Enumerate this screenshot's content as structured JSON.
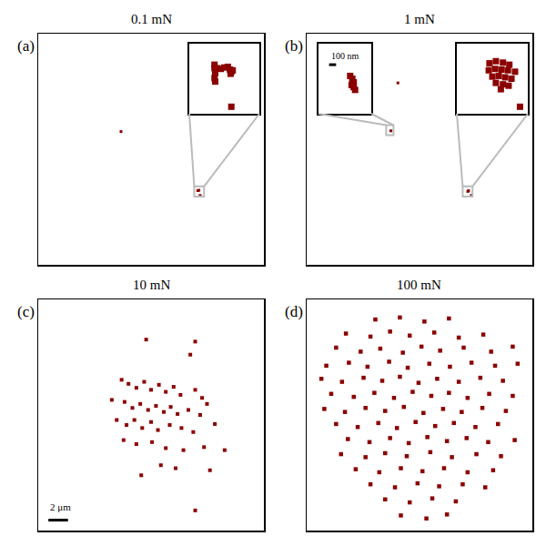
{
  "chart_data": [
    {
      "type": "scatter",
      "title": "0.1 mN",
      "panel": "(a)",
      "xlim": [
        0,
        23
      ],
      "ylim": [
        0,
        23
      ],
      "tick_labels": false,
      "color": "#8b0000",
      "points": [
        [
          16.38,
          7.42
        ],
        [
          16.26,
          7.38
        ],
        [
          16.5,
          6.9
        ],
        [
          8.44,
          13.26
        ]
      ],
      "insets": [
        {
          "xlim": [
            15.9,
            16.9
          ],
          "ylim": [
            6.8,
            7.8
          ],
          "points": [
            [
              16.26,
              7.5
            ],
            [
              16.26,
              7.45
            ],
            [
              16.27,
              7.38
            ],
            [
              16.26,
              7.31
            ],
            [
              16.27,
              7.26
            ],
            [
              16.3,
              7.45
            ],
            [
              16.35,
              7.44
            ],
            [
              16.4,
              7.46
            ],
            [
              16.45,
              7.47
            ],
            [
              16.48,
              7.43
            ],
            [
              16.5,
              7.4
            ],
            [
              16.52,
              7.42
            ],
            [
              16.49,
              7.37
            ],
            [
              16.5,
              6.9
            ]
          ]
        }
      ]
    },
    {
      "type": "scatter",
      "title": "1 mN",
      "panel": "(b)",
      "xlim": [
        0,
        23
      ],
      "ylim": [
        0,
        23
      ],
      "tick_labels": false,
      "color": "#8b0000",
      "points": [
        [
          16.5,
          7.38
        ],
        [
          16.42,
          7.3
        ],
        [
          16.79,
          6.9
        ],
        [
          8.58,
          13.33
        ],
        [
          9.3,
          18.1
        ]
      ],
      "insets": [
        {
          "xlim": [
            8.1,
            8.85
          ],
          "ylim": [
            12.9,
            13.9
          ],
          "scale_bar": {
            "length": 0.1,
            "label": "100 nm"
          },
          "points": [
            [
              8.55,
              13.44
            ],
            [
              8.58,
              13.4
            ],
            [
              8.6,
              13.35
            ],
            [
              8.57,
              13.31
            ],
            [
              8.6,
              13.28
            ],
            [
              8.62,
              13.24
            ]
          ]
        },
        {
          "xlim": [
            15.9,
            16.9
          ],
          "ylim": [
            6.8,
            7.8
          ],
          "points": [
            [
              16.36,
              7.52
            ],
            [
              16.45,
              7.55
            ],
            [
              16.55,
              7.53
            ],
            [
              16.64,
              7.5
            ],
            [
              16.35,
              7.42
            ],
            [
              16.44,
              7.44
            ],
            [
              16.53,
              7.43
            ],
            [
              16.62,
              7.42
            ],
            [
              16.72,
              7.4
            ],
            [
              16.4,
              7.33
            ],
            [
              16.49,
              7.34
            ],
            [
              16.58,
              7.32
            ],
            [
              16.67,
              7.3
            ],
            [
              16.45,
              7.24
            ],
            [
              16.55,
              7.22
            ],
            [
              16.63,
              7.2
            ],
            [
              16.52,
              7.15
            ],
            [
              16.79,
              6.9
            ]
          ]
        }
      ]
    },
    {
      "type": "scatter",
      "title": "10 mN",
      "panel": "(c)",
      "xlim": [
        0,
        23
      ],
      "ylim": [
        0,
        23
      ],
      "tick_labels": false,
      "color": "#8b0000",
      "scale_bar": {
        "length": 2,
        "label": "2 μm"
      },
      "points": [
        [
          11.0,
          19.0
        ],
        [
          16.0,
          18.8
        ],
        [
          15.5,
          17.5
        ],
        [
          8.5,
          15.0
        ],
        [
          9.2,
          14.6
        ],
        [
          10.0,
          14.2
        ],
        [
          10.8,
          14.8
        ],
        [
          11.5,
          14.0
        ],
        [
          12.3,
          14.5
        ],
        [
          13.0,
          13.8
        ],
        [
          13.8,
          14.3
        ],
        [
          14.5,
          13.5
        ],
        [
          16.0,
          14.0
        ],
        [
          16.7,
          13.2
        ],
        [
          7.5,
          13.0
        ],
        [
          8.8,
          12.8
        ],
        [
          9.6,
          12.2
        ],
        [
          10.4,
          12.6
        ],
        [
          11.2,
          12.0
        ],
        [
          12.0,
          12.4
        ],
        [
          12.8,
          11.8
        ],
        [
          13.5,
          12.3
        ],
        [
          14.2,
          11.6
        ],
        [
          15.3,
          12.0
        ],
        [
          16.5,
          11.5
        ],
        [
          17.2,
          12.6
        ],
        [
          8.0,
          11.0
        ],
        [
          9.0,
          10.5
        ],
        [
          9.8,
          11.0
        ],
        [
          10.6,
          10.2
        ],
        [
          11.5,
          10.8
        ],
        [
          12.2,
          10.0
        ],
        [
          13.4,
          10.5
        ],
        [
          14.6,
          10.2
        ],
        [
          15.8,
          9.8
        ],
        [
          18.0,
          10.6
        ],
        [
          8.7,
          9.0
        ],
        [
          10.0,
          8.6
        ],
        [
          11.6,
          8.8
        ],
        [
          13.0,
          8.2
        ],
        [
          14.8,
          8.0
        ],
        [
          16.9,
          8.3
        ],
        [
          19.0,
          8.0
        ],
        [
          12.5,
          6.5
        ],
        [
          14.0,
          6.2
        ],
        [
          17.5,
          6.0
        ],
        [
          10.5,
          5.5
        ],
        [
          16.0,
          2.0
        ]
      ]
    },
    {
      "type": "scatter",
      "title": "100 mN",
      "panel": "(d)",
      "xlim": [
        0,
        23
      ],
      "ylim": [
        0,
        23
      ],
      "tick_labels": false,
      "color": "#8b0000",
      "points": [
        [
          7,
          21
        ],
        [
          9.5,
          21.2
        ],
        [
          12,
          20.8
        ],
        [
          14.5,
          21.1
        ],
        [
          4,
          19.6
        ],
        [
          6.5,
          19.3
        ],
        [
          8.5,
          19.8
        ],
        [
          10.5,
          19.4
        ],
        [
          13,
          19.7
        ],
        [
          15.5,
          19.2
        ],
        [
          18,
          19.5
        ],
        [
          3,
          18.2
        ],
        [
          5.5,
          17.8
        ],
        [
          7.5,
          18.1
        ],
        [
          9.8,
          17.7
        ],
        [
          11.7,
          18.3
        ],
        [
          13.6,
          17.9
        ],
        [
          16,
          18.2
        ],
        [
          18.8,
          17.8
        ],
        [
          21,
          18.3
        ],
        [
          2,
          16.4
        ],
        [
          4.3,
          16.7
        ],
        [
          6.2,
          16.3
        ],
        [
          8.4,
          16.8
        ],
        [
          10.3,
          16.2
        ],
        [
          12.5,
          16.6
        ],
        [
          14.6,
          16.3
        ],
        [
          16.8,
          16.7
        ],
        [
          19.2,
          16.4
        ],
        [
          21.5,
          16.6
        ],
        [
          1.5,
          15.1
        ],
        [
          3.6,
          14.8
        ],
        [
          5.8,
          15.2
        ],
        [
          7.7,
          14.9
        ],
        [
          9.5,
          15.3
        ],
        [
          11.4,
          14.7
        ],
        [
          13.3,
          15.1
        ],
        [
          15.5,
          14.8
        ],
        [
          17.7,
          15.2
        ],
        [
          20,
          14.9
        ],
        [
          2.5,
          13.6
        ],
        [
          4.8,
          13.3
        ],
        [
          6.9,
          13.7
        ],
        [
          8.9,
          13.2
        ],
        [
          10.8,
          13.8
        ],
        [
          12.7,
          13.4
        ],
        [
          14.5,
          13.7
        ],
        [
          16.4,
          13.2
        ],
        [
          18.6,
          13.6
        ],
        [
          21,
          13.4
        ],
        [
          1.8,
          12.1
        ],
        [
          3.9,
          11.8
        ],
        [
          6,
          12.2
        ],
        [
          8,
          11.9
        ],
        [
          9.9,
          12.3
        ],
        [
          11.9,
          11.7
        ],
        [
          13.9,
          12.1
        ],
        [
          15.8,
          11.8
        ],
        [
          17.9,
          12.2
        ],
        [
          20.3,
          11.9
        ],
        [
          3,
          10.6
        ],
        [
          5.2,
          10.3
        ],
        [
          7.3,
          10.7
        ],
        [
          9.2,
          10.2
        ],
        [
          11.1,
          10.8
        ],
        [
          13.1,
          10.4
        ],
        [
          15,
          10.7
        ],
        [
          17.2,
          10.3
        ],
        [
          19.5,
          10.6
        ],
        [
          4.2,
          9.1
        ],
        [
          6.4,
          8.8
        ],
        [
          8.5,
          9.2
        ],
        [
          10.4,
          8.7
        ],
        [
          12.3,
          9.3
        ],
        [
          14.3,
          8.9
        ],
        [
          16.3,
          9.2
        ],
        [
          18.5,
          8.8
        ],
        [
          21.2,
          9
        ],
        [
          3.5,
          7.6
        ],
        [
          6,
          7.3
        ],
        [
          8,
          7.7
        ],
        [
          10.2,
          7.4
        ],
        [
          12.6,
          7.8
        ],
        [
          14.8,
          7.3
        ],
        [
          17.3,
          7.6
        ],
        [
          19.8,
          7.4
        ],
        [
          5,
          6.1
        ],
        [
          7.4,
          5.8
        ],
        [
          9.6,
          6.2
        ],
        [
          11.8,
          5.9
        ],
        [
          14,
          6.2
        ],
        [
          16.4,
          5.8
        ],
        [
          19,
          6
        ],
        [
          6.5,
          4.6
        ],
        [
          9,
          4.3
        ],
        [
          11.3,
          4.7
        ],
        [
          13.5,
          4.4
        ],
        [
          15.9,
          4.6
        ],
        [
          18.2,
          4.3
        ],
        [
          8,
          3.1
        ],
        [
          10.5,
          2.8
        ],
        [
          12.8,
          3.2
        ],
        [
          15.2,
          2.9
        ],
        [
          9.6,
          1.5
        ],
        [
          12.2,
          1.2
        ],
        [
          14.3,
          1.6
        ]
      ]
    }
  ]
}
